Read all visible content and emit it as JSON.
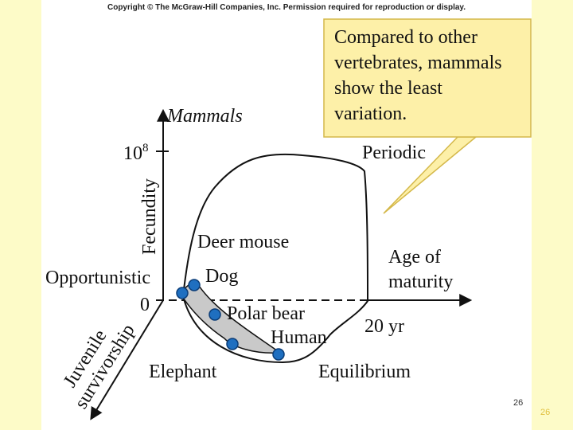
{
  "copyright": "Copyright © The McGraw-Hill Companies, Inc. Permission required for reproduction or display.",
  "callout": [
    "Compared to other",
    "vertebrates, mammals",
    "show the least",
    "variation."
  ],
  "diagram": {
    "title": "Mammals",
    "y_axis": {
      "label": "Fecundity",
      "top": {
        "base": "10",
        "exponent": "8"
      }
    },
    "origin": "0",
    "x_axis": {
      "label": [
        "Age of",
        "maturity"
      ],
      "end": "20 yr"
    },
    "z_axis": {
      "label": [
        "Juvenile",
        "survivorship"
      ]
    },
    "corners": {
      "opportunistic": "Opportunistic",
      "periodic": "Periodic",
      "equilibrium": "Equilibrium"
    },
    "points": [
      "Deer mouse",
      "Dog",
      "Polar bear",
      "Human",
      "Elephant"
    ]
  },
  "page_numbers": [
    "26",
    "26"
  ]
}
